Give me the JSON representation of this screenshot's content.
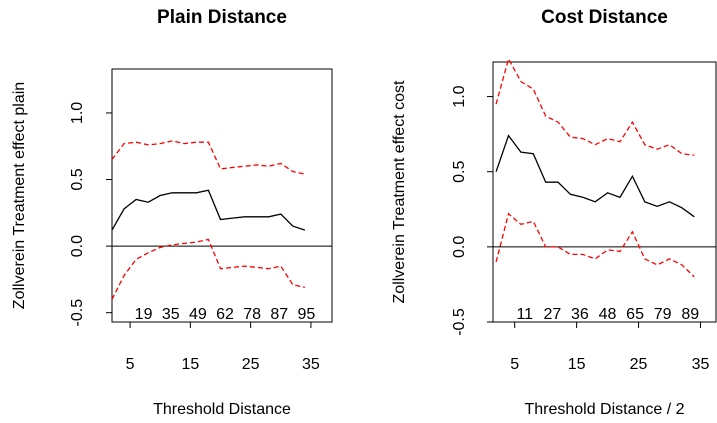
{
  "chart_data": [
    {
      "type": "line",
      "title": "Plain Distance",
      "xlabel": "Threshold Distance",
      "ylabel": "Zollverein Treatment effect plain",
      "x": [
        2,
        4,
        6,
        8,
        10,
        12,
        14,
        16,
        18,
        20,
        22,
        24,
        26,
        28,
        30,
        32,
        34
      ],
      "series": [
        {
          "color": "#000000",
          "values": [
            0.12,
            0.28,
            0.35,
            0.33,
            0.38,
            0.4,
            0.4,
            0.4,
            0.42,
            0.2,
            0.21,
            0.22,
            0.22,
            0.22,
            0.24,
            0.15,
            0.12
          ]
        },
        {
          "color": "#ff0000",
          "values": [
            0.65,
            0.77,
            0.78,
            0.76,
            0.77,
            0.79,
            0.77,
            0.78,
            0.78,
            0.58,
            0.59,
            0.6,
            0.61,
            0.6,
            0.62,
            0.56,
            0.54
          ]
        },
        {
          "color": "#ff0000",
          "values": [
            -0.4,
            -0.22,
            -0.1,
            -0.05,
            -0.01,
            0.01,
            0.02,
            0.03,
            0.05,
            -0.17,
            -0.16,
            -0.15,
            -0.16,
            -0.17,
            -0.15,
            -0.29,
            -0.31
          ]
        }
      ],
      "annotations": [
        "19",
        "35",
        "49",
        "62",
        "78",
        "87",
        "95"
      ],
      "xlim": [
        2,
        38.5
      ],
      "xticks": [
        5,
        15,
        25,
        35
      ],
      "ylim": [
        -0.57,
        1.33
      ],
      "yticks": [
        {
          "value": -0.5,
          "label": "-0.5"
        },
        {
          "value": 0,
          "label": "0.0"
        },
        0.5,
        {
          "value": 1,
          "label": "1.0"
        }
      ]
    },
    {
      "type": "line",
      "title": "Cost Distance",
      "xlabel": "Threshold Distance / 2",
      "ylabel": "Zollverein Treatment effect cost",
      "x": [
        2,
        4,
        6,
        8,
        10,
        12,
        14,
        16,
        18,
        20,
        22,
        24,
        26,
        28,
        30,
        32,
        34
      ],
      "series": [
        {
          "color": "#000000",
          "values": [
            0.5,
            0.74,
            0.63,
            0.62,
            0.43,
            0.43,
            0.35,
            0.33,
            0.3,
            0.36,
            0.33,
            0.47,
            0.3,
            0.27,
            0.3,
            0.26,
            0.2
          ]
        },
        {
          "color": "#ff0000",
          "values": [
            0.95,
            1.25,
            1.1,
            1.05,
            0.87,
            0.83,
            0.73,
            0.72,
            0.68,
            0.72,
            0.7,
            0.83,
            0.68,
            0.65,
            0.68,
            0.62,
            0.61
          ]
        },
        {
          "color": "#ff0000",
          "values": [
            -0.1,
            0.22,
            0.15,
            0.17,
            0.0,
            0.0,
            -0.05,
            -0.05,
            -0.08,
            -0.02,
            -0.03,
            0.1,
            -0.08,
            -0.12,
            -0.08,
            -0.12,
            -0.2
          ]
        }
      ],
      "annotations": [
        "11",
        "27",
        "36",
        "48",
        "65",
        "79",
        "89"
      ],
      "xlim": [
        1.5,
        37.5
      ],
      "xticks": [
        5,
        15,
        25,
        35
      ],
      "ylim": [
        -0.5,
        1.23
      ],
      "yticks": [
        {
          "value": -0.5,
          "label": "-0.5"
        },
        {
          "value": 0,
          "label": "0.0"
        },
        0.5,
        {
          "value": 1,
          "label": "1.0"
        }
      ]
    }
  ]
}
